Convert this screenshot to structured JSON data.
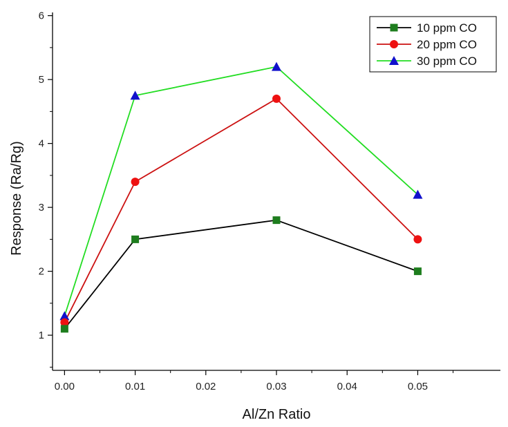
{
  "chart_data": {
    "type": "line",
    "title": "",
    "xlabel": "Al/Zn Ratio",
    "ylabel": "Response (Ra/Rg)",
    "x": [
      0.0,
      0.01,
      0.03,
      0.05
    ],
    "xlim": [
      -0.0017,
      0.0617
    ],
    "ylim": [
      0.45,
      6.05
    ],
    "xticks": [
      0.0,
      0.01,
      0.02,
      0.03,
      0.04,
      0.05
    ],
    "xtick_labels": [
      "0.00",
      "0.01",
      "0.02",
      "0.03",
      "0.04",
      "0.05"
    ],
    "yticks": [
      1,
      2,
      3,
      4,
      5,
      6
    ],
    "ytick_labels": [
      "1",
      "2",
      "3",
      "4",
      "5",
      "6"
    ],
    "grid": false,
    "legend_position": "top-right",
    "series": [
      {
        "name": "10 ppm CO",
        "marker": "square",
        "line_color": "#000000",
        "marker_color": "#1e7d1e",
        "values": [
          1.1,
          2.5,
          2.8,
          2.0
        ]
      },
      {
        "name": "20 ppm CO",
        "marker": "circle",
        "line_color": "#cc1111",
        "marker_color": "#ee1111",
        "values": [
          1.2,
          3.4,
          4.7,
          2.5
        ]
      },
      {
        "name": "30 ppm CO",
        "marker": "triangle",
        "line_color": "#22dd22",
        "marker_color": "#1111cc",
        "values": [
          1.3,
          4.75,
          5.2,
          3.2
        ]
      }
    ]
  }
}
